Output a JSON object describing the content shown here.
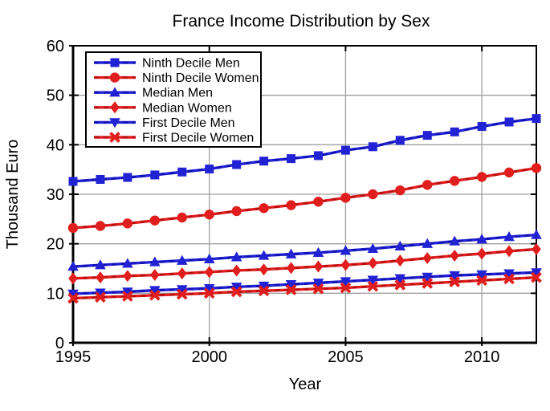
{
  "colors": {
    "background": "#ffffff",
    "axis": "#000000",
    "grid": "#a0a0a0",
    "text": "#000000",
    "legend_border": "#000000",
    "men_blue": "#2222d5",
    "women_red": "#e11e1e"
  },
  "chart_data": {
    "type": "line",
    "title": "France Income Distribution by Sex",
    "xlabel": "Year",
    "ylabel": "Thousand Euro",
    "xlim": [
      1995,
      2012
    ],
    "ylim": [
      0,
      60
    ],
    "grid": true,
    "legend_position": "top-left",
    "x_ticks": [
      1995,
      2000,
      2005,
      2010
    ],
    "x_tick_labels": [
      "1995",
      "2000",
      "2005",
      "2010"
    ],
    "y_ticks": [
      0,
      10,
      20,
      30,
      40,
      50,
      60
    ],
    "y_tick_labels": [
      "0",
      "10",
      "20",
      "30",
      "40",
      "50",
      "60"
    ],
    "x": [
      1995,
      1996,
      1997,
      1998,
      1999,
      2000,
      2001,
      2002,
      2003,
      2004,
      2005,
      2006,
      2007,
      2008,
      2009,
      2010,
      2011,
      2012
    ],
    "series": [
      {
        "name": "Ninth Decile Men",
        "color": "#2222d5",
        "dash_color": "#000099",
        "marker": "square",
        "values": [
          32.6,
          33.0,
          33.4,
          33.9,
          34.5,
          35.1,
          36.0,
          36.7,
          37.2,
          37.8,
          38.9,
          39.6,
          40.9,
          41.9,
          42.6,
          43.7,
          44.6,
          45.3
        ]
      },
      {
        "name": "Ninth Decile Women",
        "color": "#e11e1e",
        "dash_color": "#9b0000",
        "marker": "circle",
        "values": [
          23.2,
          23.6,
          24.1,
          24.7,
          25.3,
          25.9,
          26.6,
          27.2,
          27.8,
          28.5,
          29.3,
          30.0,
          30.8,
          31.9,
          32.7,
          33.5,
          34.4,
          35.3
        ]
      },
      {
        "name": "Median Men",
        "color": "#2222d5",
        "dash_color": "#000099",
        "marker": "triangle-up",
        "values": [
          15.4,
          15.7,
          16.0,
          16.3,
          16.6,
          16.9,
          17.3,
          17.6,
          17.9,
          18.2,
          18.6,
          19.0,
          19.5,
          20.0,
          20.5,
          20.9,
          21.4,
          21.8
        ]
      },
      {
        "name": "Median Women",
        "color": "#e11e1e",
        "dash_color": "#9b0000",
        "marker": "diamond",
        "values": [
          13.0,
          13.2,
          13.5,
          13.7,
          14.0,
          14.3,
          14.6,
          14.8,
          15.1,
          15.4,
          15.7,
          16.1,
          16.6,
          17.1,
          17.6,
          18.0,
          18.5,
          18.9
        ]
      },
      {
        "name": "First Decile Men",
        "color": "#2222d5",
        "dash_color": "#000099",
        "marker": "triangle-down",
        "values": [
          9.9,
          10.1,
          10.3,
          10.6,
          10.8,
          11.0,
          11.3,
          11.5,
          11.8,
          12.1,
          12.4,
          12.7,
          13.0,
          13.3,
          13.6,
          13.8,
          14.0,
          14.2
        ]
      },
      {
        "name": "First Decile Women",
        "color": "#e11e1e",
        "dash_color": "#9b0000",
        "marker": "x",
        "values": [
          9.0,
          9.2,
          9.4,
          9.6,
          9.8,
          10.0,
          10.3,
          10.5,
          10.7,
          10.9,
          11.1,
          11.4,
          11.7,
          12.0,
          12.3,
          12.6,
          12.9,
          13.2
        ]
      }
    ]
  }
}
